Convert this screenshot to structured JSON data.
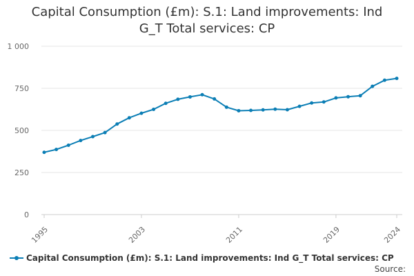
{
  "title_lines": [
    "Capital Consumption (£m): S.1: Land improvements: Ind",
    "G_T Total services: CP"
  ],
  "source_label": "Source:",
  "colors": {
    "series": "#0b7eb5",
    "grid": "#e6e6e6",
    "axis": "#cccccc",
    "tick_text": "#666666"
  },
  "chart_data": {
    "type": "line",
    "title": "Capital Consumption (£m): S.1: Land improvements: Ind G_T Total services: CP",
    "xlabel": "",
    "ylabel": "",
    "xlim": [
      1995,
      2024
    ],
    "ylim": [
      0,
      1000
    ],
    "yticks": [
      0,
      250,
      500,
      750,
      1000
    ],
    "ytick_labels": [
      "0",
      "250",
      "500",
      "750",
      "1 000"
    ],
    "xticks": [
      1995,
      2003,
      2011,
      2019,
      2024
    ],
    "xtick_labels": [
      "1995",
      "2003",
      "2011",
      "2019",
      "2024"
    ],
    "legend": "bottom-left",
    "series": [
      {
        "name": "Capital Consumption (£m): S.1: Land improvements: Ind G_T Total services: CP",
        "x": [
          1995,
          1996,
          1997,
          1998,
          1999,
          2000,
          2001,
          2002,
          2003,
          2004,
          2005,
          2006,
          2007,
          2008,
          2009,
          2010,
          2011,
          2012,
          2013,
          2014,
          2015,
          2016,
          2017,
          2018,
          2019,
          2020,
          2021,
          2022,
          2023,
          2024
        ],
        "values": [
          370,
          387,
          412,
          440,
          463,
          487,
          538,
          575,
          602,
          625,
          661,
          685,
          699,
          712,
          687,
          638,
          617,
          619,
          622,
          626,
          623,
          643,
          663,
          669,
          693,
          700,
          706,
          762,
          798,
          809
        ]
      }
    ]
  }
}
